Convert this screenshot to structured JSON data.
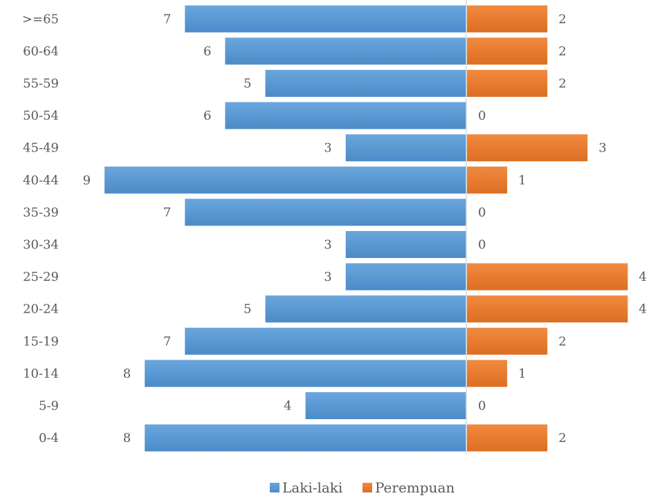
{
  "chart_data": {
    "type": "bar",
    "orientation": "horizontal",
    "layout": "population-pyramid",
    "categories": [
      ">=65",
      "60-64",
      "55-59",
      "50-54",
      "45-49",
      "40-44",
      "35-39",
      "30-34",
      "25-29",
      "20-24",
      "15-19",
      "10-14",
      "5-9",
      "0-4"
    ],
    "series": [
      {
        "name": "Laki-laki",
        "color": "#5B9BD5",
        "values": [
          7,
          6,
          5,
          6,
          3,
          9,
          7,
          3,
          3,
          5,
          7,
          8,
          4,
          8
        ]
      },
      {
        "name": "Perempuan",
        "color": "#ED7D31",
        "values": [
          2,
          2,
          2,
          0,
          3,
          1,
          0,
          0,
          4,
          4,
          2,
          1,
          0,
          2
        ]
      }
    ],
    "title": "",
    "xlabel": "",
    "ylabel": "",
    "grid": false,
    "legend": "bottom-center",
    "data_labels": true
  }
}
